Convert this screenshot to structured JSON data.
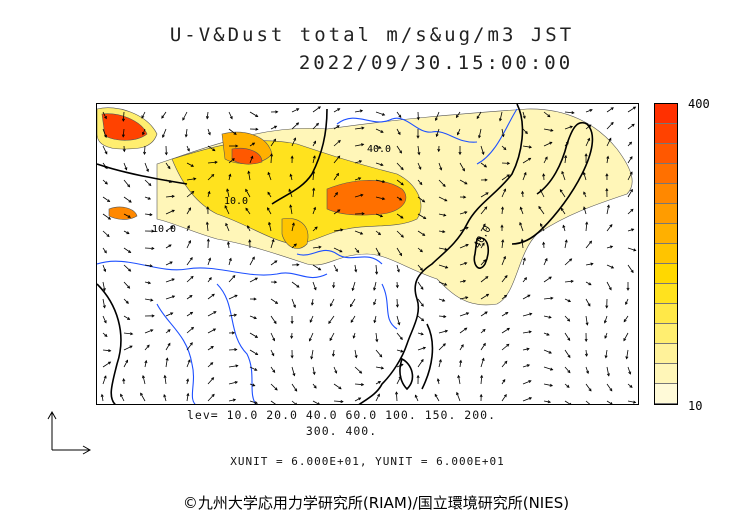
{
  "title": {
    "line1": "U-V&Dust total m/s&ug/m3 JST",
    "line2": "2022/09/30.15:00:00"
  },
  "colorbar": {
    "max_label": "400",
    "min_label": "10",
    "colors": [
      "#fffad8",
      "#fff6b8",
      "#fff29a",
      "#ffee70",
      "#ffe848",
      "#ffe21e",
      "#ffd800",
      "#ffc400",
      "#ffb000",
      "#ff9c00",
      "#ff8800",
      "#ff7000",
      "#ff5800",
      "#ff4200",
      "#ff3000"
    ]
  },
  "levels": {
    "line1": "lev= 10.0 20.0 40.0 60.0 100. 150. 200.",
    "line2": "300. 400."
  },
  "units": "XUNIT = 6.000E+01, YUNIT = 6.000E+01",
  "copyright": "©九州大学応用力学研究所(RIAM)/国立環境研究所(NIES)",
  "contour_labels": [
    "40.0",
    "10.0",
    "10.0",
    "40.0"
  ]
}
